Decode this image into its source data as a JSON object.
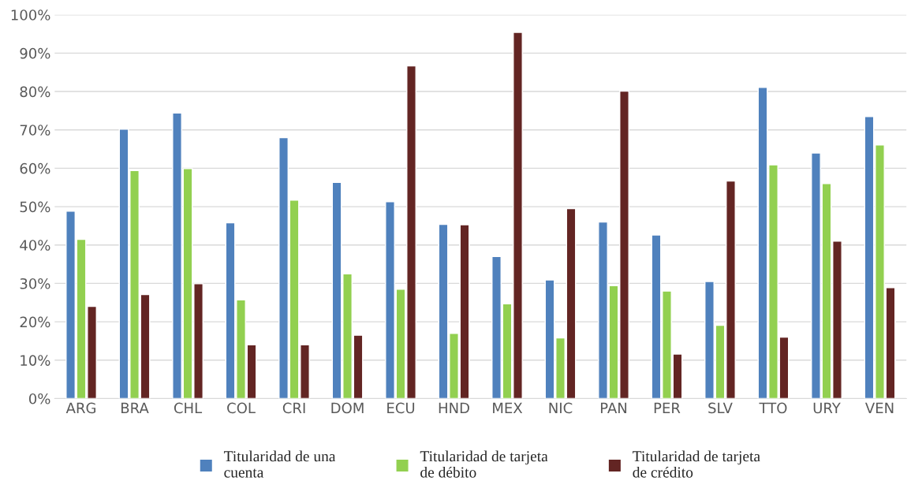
{
  "chart_data": {
    "type": "bar",
    "categories": [
      "ARG",
      "BRA",
      "CHL",
      "COL",
      "CRI",
      "DOM",
      "ECU",
      "HND",
      "MEX",
      "NIC",
      "PAN",
      "PER",
      "SLV",
      "TTO",
      "URY",
      "VEN"
    ],
    "series": [
      {
        "name": "Titularidad de una\ncuenta",
        "color": "#4f81bd",
        "values": [
          48.8,
          70.2,
          74.4,
          45.8,
          68,
          56.3,
          51.3,
          45.4,
          37,
          30.9,
          46,
          42.6,
          30.5,
          81.1,
          64,
          73.5
        ]
      },
      {
        "name": "Titularidad de tarjeta\nde débito",
        "color": "#92d050",
        "values": [
          41.5,
          59.4,
          59.9,
          25.7,
          51.7,
          32.5,
          28.5,
          17,
          24.7,
          15.8,
          29.4,
          28,
          19.1,
          60.9,
          56,
          66.1
        ]
      },
      {
        "name": "Titularidad de tarjeta\nde crédito",
        "color": "#632523",
        "values": [
          24,
          27.1,
          29.9,
          14,
          14,
          16.5,
          86.7,
          45.3,
          95.4,
          49.5,
          80.1,
          11.6,
          56.7,
          16,
          41,
          28.9
        ]
      }
    ],
    "ylim": [
      0,
      100
    ],
    "yticks": [
      {
        "value": 0,
        "label": "0%"
      },
      {
        "value": 10,
        "label": "10%"
      },
      {
        "value": 20,
        "label": "20%"
      },
      {
        "value": 30,
        "label": "30%"
      },
      {
        "value": 40,
        "label": "40%"
      },
      {
        "value": 50,
        "label": "50%"
      },
      {
        "value": 60,
        "label": "60%"
      },
      {
        "value": 70,
        "label": "70%"
      },
      {
        "value": 80,
        "label": "80%"
      },
      {
        "value": 90,
        "label": "90%"
      },
      {
        "value": 100,
        "label": "100%"
      }
    ],
    "grid": "y",
    "legend": "bottom"
  }
}
